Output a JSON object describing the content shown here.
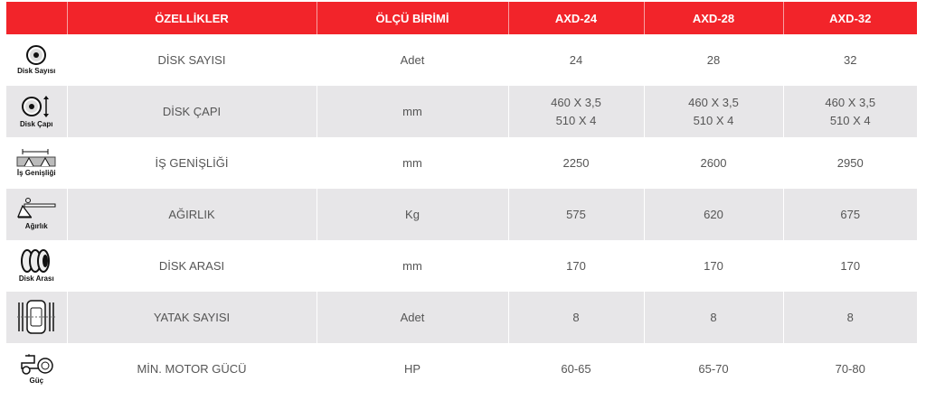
{
  "header": {
    "icon_col": "",
    "feature": "ÖZELLİKLER",
    "unit": "ÖLÇÜ BİRİMİ",
    "models": [
      "AXD-24",
      "AXD-28",
      "AXD-32"
    ]
  },
  "colors": {
    "header_bg": "#f2242a",
    "alt_row_bg": "#e7e6e8",
    "text": "#555555"
  },
  "rows": [
    {
      "icon": "disk-icon",
      "icon_label": "Disk Sayısı",
      "feature": "DİSK SAYISI",
      "unit": "Adet",
      "values": [
        [
          "24"
        ],
        [
          "28"
        ],
        [
          "32"
        ]
      ]
    },
    {
      "icon": "disk-diameter-icon",
      "icon_label": "Disk Çapı",
      "feature": "DİSK ÇAPI",
      "unit": "mm",
      "values": [
        [
          "460 X 3,5",
          "510 X 4"
        ],
        [
          "460 X 3,5",
          "510 X 4"
        ],
        [
          "460 X 3,5",
          "510 X 4"
        ]
      ]
    },
    {
      "icon": "work-width-icon",
      "icon_label": "İş Genişliği",
      "feature": "İŞ GENİŞLİĞİ",
      "unit": "mm",
      "values": [
        [
          "2250"
        ],
        [
          "2600"
        ],
        [
          "2950"
        ]
      ]
    },
    {
      "icon": "weight-scale-icon",
      "icon_label": "Ağırlık",
      "feature": "AĞIRLIK",
      "unit": "Kg",
      "values": [
        [
          "575"
        ],
        [
          "620"
        ],
        [
          "675"
        ]
      ]
    },
    {
      "icon": "disk-spacing-icon",
      "icon_label": "Disk Arası",
      "feature": "DİSK ARASI",
      "unit": "mm",
      "values": [
        [
          "170"
        ],
        [
          "170"
        ],
        [
          "170"
        ]
      ]
    },
    {
      "icon": "bearing-icon",
      "icon_label": "",
      "feature": "YATAK SAYISI",
      "unit": "Adet",
      "values": [
        [
          "8"
        ],
        [
          "8"
        ],
        [
          "8"
        ]
      ]
    },
    {
      "icon": "tractor-icon",
      "icon_label": "Güç",
      "feature": "MİN. MOTOR GÜCÜ",
      "unit": "HP",
      "values": [
        [
          "60-65"
        ],
        [
          "65-70"
        ],
        [
          "70-80"
        ]
      ]
    }
  ]
}
